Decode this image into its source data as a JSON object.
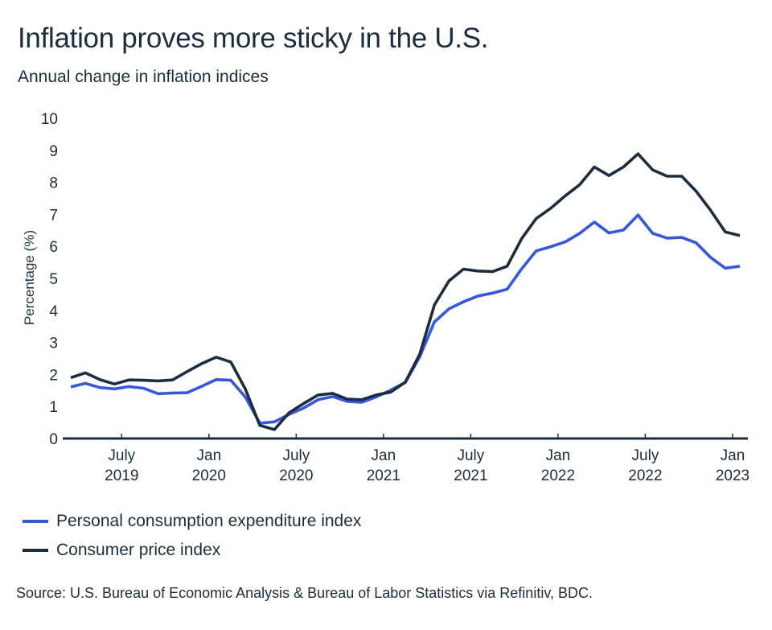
{
  "header": {
    "title": "Inflation proves more sticky in the U.S.",
    "subtitle": "Annual change in inflation indices"
  },
  "footer": {
    "source": "Source: U.S. Bureau of Economic Analysis & Bureau of Labor Statistics via Refinitiv, BDC."
  },
  "colors": {
    "pce": "#3355f0",
    "cpi": "#1b2d3e",
    "axis": "#1b2d3e"
  },
  "chart_data": {
    "type": "line",
    "title": "Inflation proves more sticky in the U.S.",
    "subtitle": "Annual change in inflation indices",
    "xlabel": "",
    "ylabel": "Percentage (%)",
    "ylim": [
      0,
      10
    ],
    "yticks": [
      "0",
      "1",
      "2",
      "3",
      "4",
      "5",
      "6",
      "7",
      "8",
      "9",
      "10"
    ],
    "grid": false,
    "legend_position": "bottom-left",
    "x": [
      "Mar 2019",
      "Apr 2019",
      "May 2019",
      "Jun 2019",
      "Jul 2019",
      "Aug 2019",
      "Sep 2019",
      "Oct 2019",
      "Nov 2019",
      "Dec 2019",
      "Jan 2020",
      "Feb 2020",
      "Mar 2020",
      "Apr 2020",
      "May 2020",
      "Jun 2020",
      "Jul 2020",
      "Aug 2020",
      "Sep 2020",
      "Oct 2020",
      "Nov 2020",
      "Dec 2020",
      "Jan 2021",
      "Feb 2021",
      "Mar 2021",
      "Apr 2021",
      "May 2021",
      "Jun 2021",
      "Jul 2021",
      "Aug 2021",
      "Sep 2021",
      "Oct 2021",
      "Nov 2021",
      "Dec 2021",
      "Jan 2022",
      "Feb 2022",
      "Mar 2022",
      "Apr 2022",
      "May 2022",
      "Jun 2022",
      "Jul 2022",
      "Aug 2022",
      "Sep 2022",
      "Oct 2022",
      "Nov 2022",
      "Dec 2022",
      "Jan 2023"
    ],
    "xticks": [
      {
        "month": "Jul 2019",
        "line1": "July",
        "line2": "2019"
      },
      {
        "month": "Jan 2020",
        "line1": "Jan",
        "line2": "2020"
      },
      {
        "month": "Jul 2020",
        "line1": "July",
        "line2": "2020"
      },
      {
        "month": "Jan 2021",
        "line1": "Jan",
        "line2": "2021"
      },
      {
        "month": "Jul 2021",
        "line1": "July",
        "line2": "2021"
      },
      {
        "month": "Jan 2022",
        "line1": "Jan",
        "line2": "2022"
      },
      {
        "month": "Jul 2022",
        "line1": "July",
        "line2": "2022"
      },
      {
        "month": "Jan 2023",
        "line1": "Jan",
        "line2": "2023"
      }
    ],
    "series": [
      {
        "name": "Personal consumption expenditure index",
        "key": "pce",
        "values": [
          1.61,
          1.72,
          1.59,
          1.55,
          1.62,
          1.57,
          1.4,
          1.42,
          1.43,
          1.63,
          1.84,
          1.82,
          1.3,
          0.48,
          0.52,
          0.75,
          0.95,
          1.21,
          1.31,
          1.16,
          1.13,
          1.3,
          1.51,
          1.75,
          2.56,
          3.64,
          4.05,
          4.27,
          4.45,
          4.54,
          4.66,
          5.3,
          5.86,
          5.99,
          6.14,
          6.41,
          6.76,
          6.42,
          6.51,
          6.98,
          6.41,
          6.26,
          6.28,
          6.11,
          5.65,
          5.32,
          5.38
        ]
      },
      {
        "name": "Consumer price index",
        "key": "cpi",
        "values": [
          1.9,
          2.05,
          1.84,
          1.7,
          1.83,
          1.82,
          1.8,
          1.83,
          2.09,
          2.34,
          2.54,
          2.39,
          1.55,
          0.41,
          0.28,
          0.8,
          1.09,
          1.36,
          1.41,
          1.23,
          1.21,
          1.36,
          1.45,
          1.76,
          2.64,
          4.17,
          4.92,
          5.29,
          5.23,
          5.21,
          5.38,
          6.24,
          6.87,
          7.19,
          7.58,
          7.93,
          8.48,
          8.21,
          8.48,
          8.89,
          8.39,
          8.19,
          8.19,
          7.72,
          7.12,
          6.45,
          6.34
        ]
      }
    ]
  }
}
